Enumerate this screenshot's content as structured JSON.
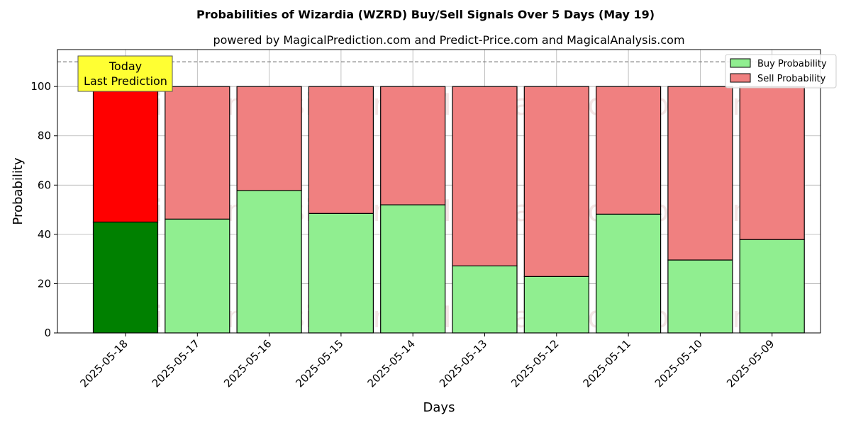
{
  "chart_data": {
    "type": "bar",
    "stacked": true,
    "title": "Probabilities of Wizardia (WZRD) Buy/Sell Signals Over 5 Days (May 19)",
    "subtitle": "powered by MagicalPrediction.com and Predict-Price.com and MagicalAnalysis.com",
    "xlabel": "Days",
    "ylabel": "Probability",
    "ylim": [
      0,
      115
    ],
    "yticks": [
      0,
      20,
      40,
      60,
      80,
      100
    ],
    "grid": true,
    "legend_position": "top-right",
    "reference_line": 110,
    "categories": [
      "2025-05-18",
      "2025-05-17",
      "2025-05-16",
      "2025-05-15",
      "2025-05-14",
      "2025-05-13",
      "2025-05-12",
      "2025-05-11",
      "2025-05-10",
      "2025-05-09"
    ],
    "series": [
      {
        "name": "Buy Probability",
        "color": "#90ee90",
        "highlight_color": "#008000",
        "values": [
          45,
          46.2,
          57.8,
          48.5,
          52.0,
          27.2,
          22.9,
          48.2,
          29.6,
          37.9
        ]
      },
      {
        "name": "Sell Probability",
        "color": "#f08080",
        "highlight_color": "#ff0000",
        "values": [
          55,
          53.8,
          42.2,
          51.5,
          48.0,
          72.8,
          77.1,
          51.8,
          70.4,
          62.1
        ]
      }
    ],
    "annotation": {
      "lines": [
        "Today",
        "Last Prediction"
      ],
      "color": "#ffff33",
      "category": "2025-05-18"
    },
    "watermarks": [
      "MagicalAnalysis.com",
      "MagicalPrediction.com"
    ]
  }
}
